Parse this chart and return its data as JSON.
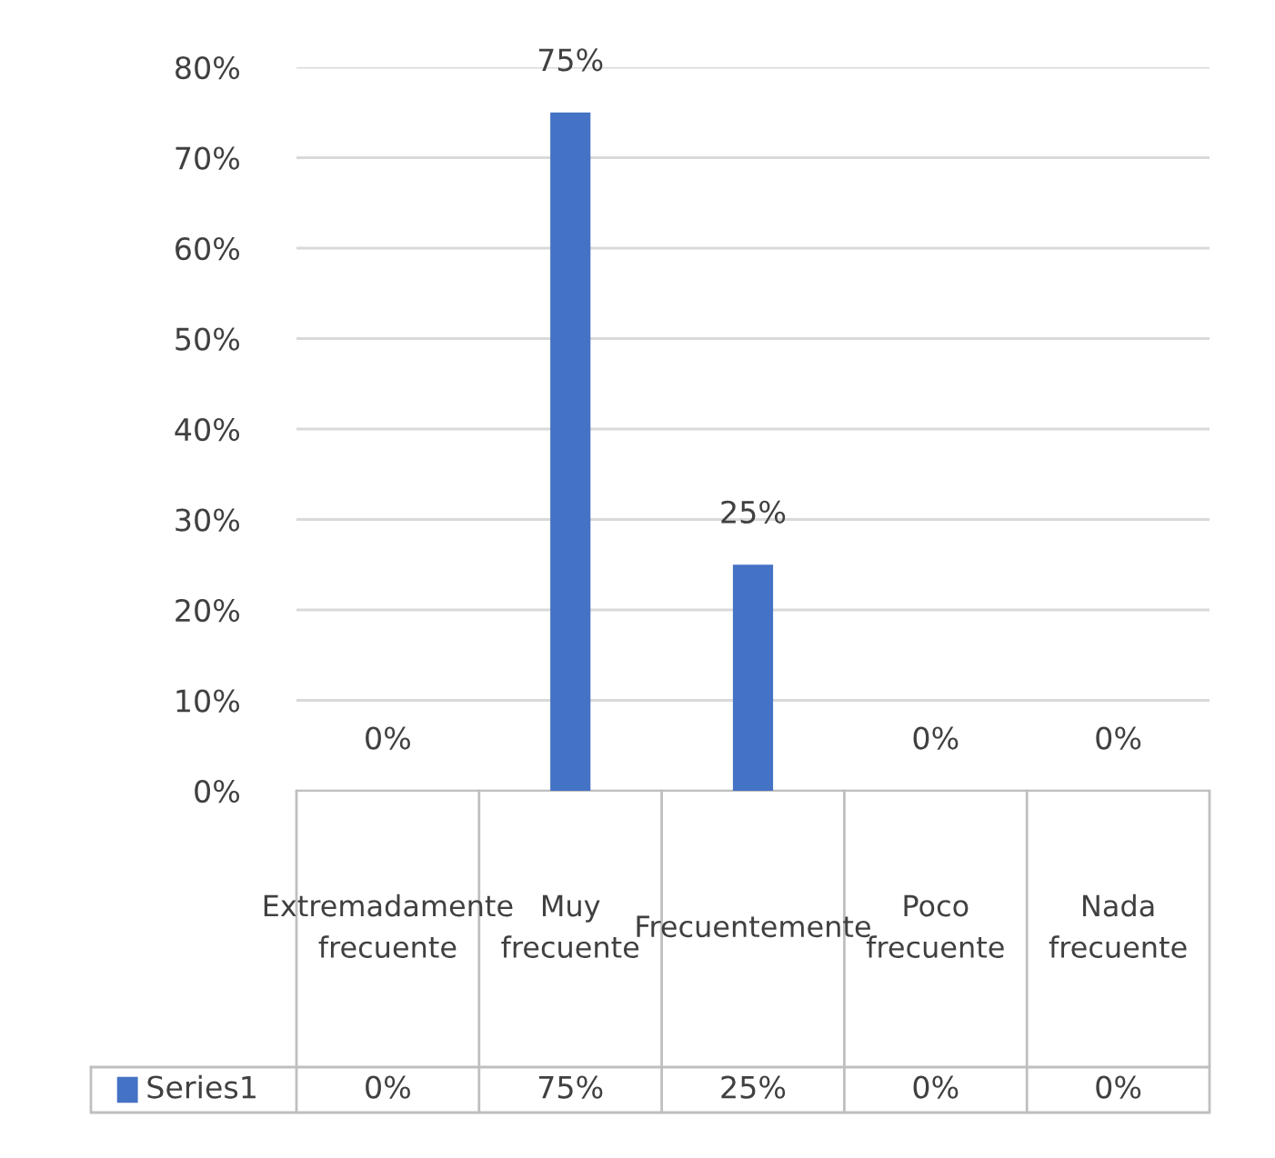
{
  "chart_data": {
    "type": "bar",
    "categories": [
      "Extremadamente frecuente",
      "Muy frecuente",
      "Frecuentemente",
      "Poco frecuente",
      "Nada frecuente"
    ],
    "series": [
      {
        "name": "Series1",
        "color": "#4472c4",
        "values": [
          0,
          75,
          25,
          0,
          0
        ],
        "value_labels": [
          "0%",
          "75%",
          "25%",
          "0%",
          "0%"
        ]
      }
    ],
    "ylim": [
      0,
      80
    ],
    "yticks": [
      {
        "value": 0,
        "label": "0%"
      },
      {
        "value": 10,
        "label": "10%"
      },
      {
        "value": 20,
        "label": "20%"
      },
      {
        "value": 30,
        "label": "30%"
      },
      {
        "value": 40,
        "label": "40%"
      },
      {
        "value": 50,
        "label": "50%"
      },
      {
        "value": 60,
        "label": "60%"
      },
      {
        "value": 70,
        "label": "70%"
      },
      {
        "value": 80,
        "label": "80%"
      }
    ],
    "grid": "y",
    "legend": "bottom"
  }
}
